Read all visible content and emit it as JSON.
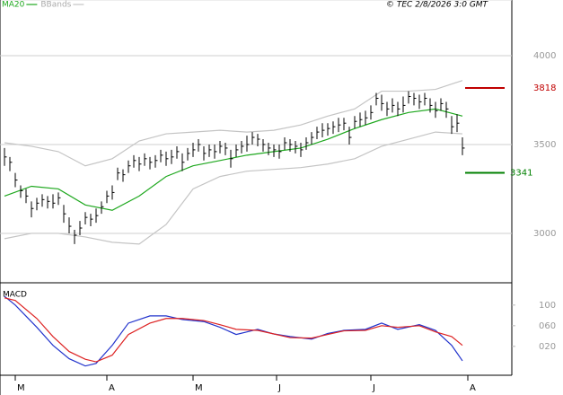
{
  "chart_data": [
    {
      "type": "ohlc",
      "source": "© TEC 2/8/2026 3:0 GMT",
      "xlim": [
        0,
        85
      ],
      "xticks": [
        {
          "value": 2,
          "label": "M"
        },
        {
          "value": 19,
          "label": "A"
        },
        {
          "value": 35,
          "label": "M"
        },
        {
          "value": 50.5,
          "label": "J"
        },
        {
          "value": 68,
          "label": "J"
        },
        {
          "value": 86,
          "label": "A"
        }
      ],
      "ylim": [
        2722,
        4313
      ],
      "yticks": [
        4000,
        3500,
        3000
      ],
      "grid": true,
      "color": "#000000",
      "close": [
        3430,
        3400,
        3300,
        3240,
        3210,
        3140,
        3170,
        3190,
        3180,
        3170,
        3200,
        3110,
        3040,
        2990,
        3030,
        3090,
        3080,
        3100,
        3150,
        3210,
        3230,
        3340,
        3330,
        3380,
        3410,
        3390,
        3420,
        3400,
        3410,
        3440,
        3420,
        3430,
        3460,
        3400,
        3450,
        3470,
        3500,
        3450,
        3470,
        3460,
        3490,
        3480,
        3420,
        3470,
        3490,
        3500,
        3540,
        3530,
        3500,
        3480,
        3470,
        3460,
        3510,
        3500,
        3490,
        3470,
        3510,
        3540,
        3570,
        3580,
        3590,
        3600,
        3610,
        3620,
        3540,
        3630,
        3640,
        3650,
        3680,
        3760,
        3730,
        3700,
        3720,
        3700,
        3720,
        3770,
        3760,
        3740,
        3760,
        3720,
        3690,
        3730,
        3700,
        3600,
        3620,
        3480
      ],
      "high": [
        3480,
        3430,
        3340,
        3270,
        3250,
        3180,
        3200,
        3220,
        3210,
        3220,
        3230,
        3160,
        3090,
        3020,
        3070,
        3120,
        3110,
        3140,
        3180,
        3240,
        3270,
        3370,
        3360,
        3410,
        3440,
        3430,
        3450,
        3430,
        3440,
        3470,
        3460,
        3470,
        3490,
        3450,
        3480,
        3510,
        3530,
        3490,
        3500,
        3500,
        3520,
        3510,
        3470,
        3500,
        3520,
        3550,
        3570,
        3560,
        3530,
        3510,
        3500,
        3500,
        3540,
        3530,
        3520,
        3510,
        3540,
        3570,
        3600,
        3620,
        3620,
        3630,
        3650,
        3650,
        3600,
        3660,
        3680,
        3690,
        3720,
        3790,
        3780,
        3740,
        3760,
        3740,
        3770,
        3800,
        3790,
        3780,
        3790,
        3760,
        3740,
        3760,
        3740,
        3660,
        3670,
        3540
      ],
      "low": [
        3380,
        3350,
        3260,
        3200,
        3170,
        3090,
        3130,
        3150,
        3140,
        3140,
        3160,
        3060,
        3000,
        2940,
        2990,
        3050,
        3040,
        3060,
        3110,
        3170,
        3190,
        3300,
        3290,
        3340,
        3370,
        3350,
        3380,
        3360,
        3370,
        3400,
        3380,
        3390,
        3420,
        3350,
        3410,
        3430,
        3460,
        3410,
        3430,
        3420,
        3450,
        3440,
        3370,
        3430,
        3450,
        3460,
        3500,
        3490,
        3460,
        3440,
        3430,
        3420,
        3470,
        3460,
        3450,
        3430,
        3470,
        3500,
        3530,
        3540,
        3550,
        3560,
        3570,
        3580,
        3500,
        3590,
        3600,
        3610,
        3640,
        3720,
        3690,
        3660,
        3680,
        3660,
        3680,
        3730,
        3720,
        3700,
        3720,
        3680,
        3650,
        3690,
        3650,
        3560,
        3570,
        3440
      ],
      "series": [
        {
          "name": "MA20",
          "color": "#1fa81f",
          "x": [
            0,
            5,
            10,
            15,
            20,
            25,
            30,
            35,
            40,
            45,
            50,
            55,
            60,
            65,
            70,
            75,
            80,
            85
          ],
          "values": [
            3210,
            3265,
            3250,
            3160,
            3130,
            3210,
            3320,
            3380,
            3410,
            3440,
            3460,
            3480,
            3530,
            3590,
            3640,
            3680,
            3700,
            3660
          ]
        },
        {
          "name": "BBands",
          "color": "#c4c4c4",
          "x": [
            0,
            5,
            10,
            15,
            20,
            25,
            30,
            35,
            40,
            45,
            50,
            55,
            60,
            65,
            70,
            75,
            80,
            85
          ],
          "values": [
            3510,
            3490,
            3460,
            3380,
            3420,
            3520,
            3560,
            3570,
            3580,
            3570,
            3580,
            3610,
            3660,
            3700,
            3800,
            3800,
            3810,
            3860
          ],
          "lower": [
            2970,
            3000,
            3000,
            2980,
            2950,
            2940,
            3050,
            3250,
            3320,
            3350,
            3360,
            3370,
            3390,
            3420,
            3490,
            3530,
            3570,
            3560
          ]
        }
      ],
      "levels": [
        {
          "value": 3818,
          "color": "#c00000"
        },
        {
          "value": 3341,
          "color": "#008000"
        }
      ]
    },
    {
      "type": "line",
      "title": "MACD",
      "xlim": [
        0,
        85
      ],
      "ylim": [
        -36,
        138
      ],
      "yticks": [
        100,
        {
          "value": 60,
          "label": "060"
        },
        {
          "value": 20,
          "label": "020"
        }
      ],
      "series": [
        {
          "color": "#2233cc",
          "x": [
            0,
            2,
            6,
            9,
            12,
            15,
            17,
            20,
            23,
            27,
            30,
            33,
            37,
            40,
            43,
            47,
            50,
            53,
            57,
            60,
            63,
            67,
            70,
            73,
            77,
            80,
            83,
            85
          ],
          "values": [
            117,
            100,
            57,
            22,
            -4,
            -18,
            -13,
            22,
            65,
            79,
            79,
            72,
            68,
            57,
            43,
            53,
            44,
            39,
            34,
            45,
            51,
            53,
            65,
            53,
            62,
            51,
            22,
            -8
          ]
        },
        {
          "color": "#dd2222",
          "x": [
            0,
            2,
            6,
            9,
            12,
            15,
            17,
            20,
            23,
            27,
            30,
            33,
            37,
            40,
            43,
            47,
            50,
            53,
            57,
            60,
            63,
            67,
            70,
            73,
            77,
            80,
            83,
            85
          ],
          "values": [
            114,
            109,
            74,
            39,
            10,
            -5,
            -10,
            3,
            43,
            65,
            74,
            74,
            70,
            62,
            53,
            51,
            44,
            37,
            36,
            43,
            50,
            51,
            60,
            57,
            60,
            48,
            39,
            22
          ]
        }
      ]
    }
  ]
}
